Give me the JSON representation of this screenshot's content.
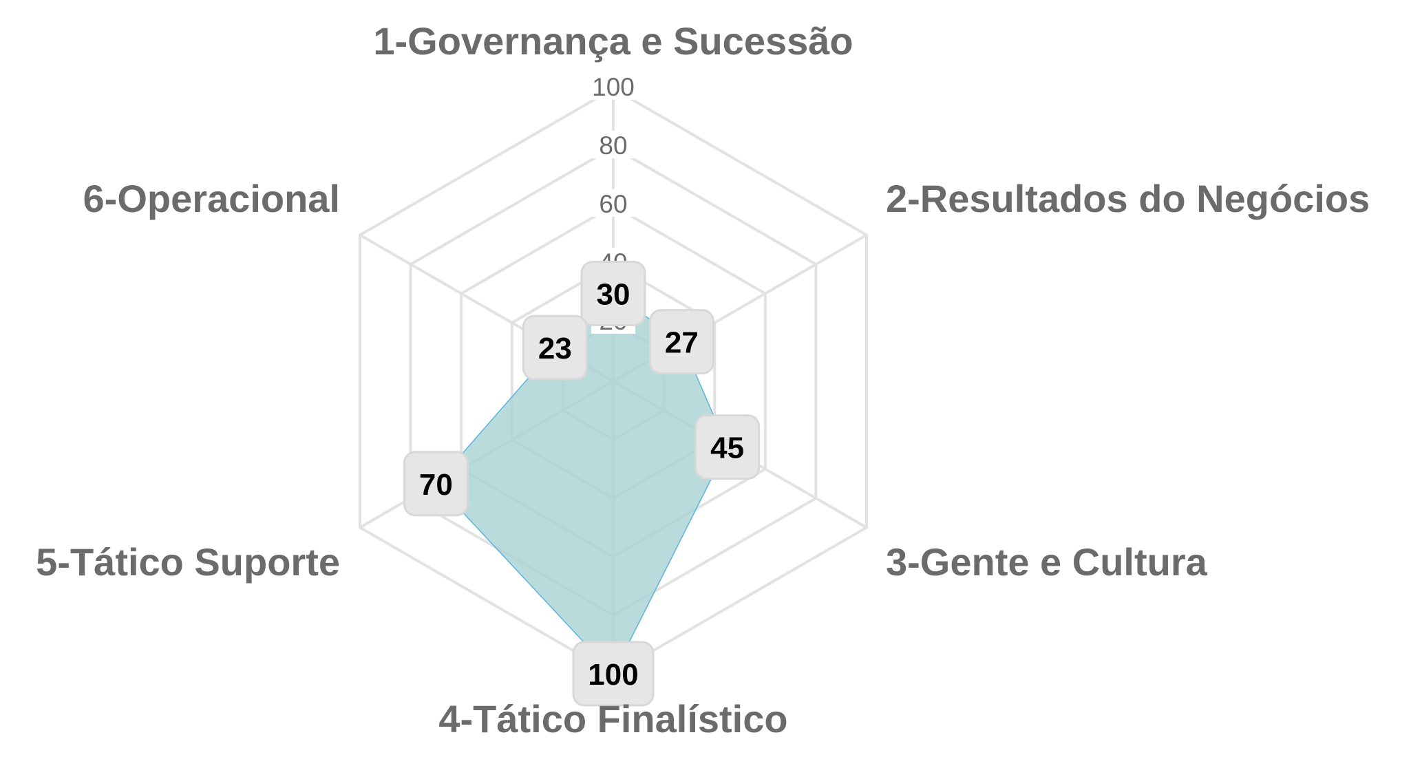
{
  "chart_data": {
    "type": "radar",
    "categories": [
      "1-Governança e Sucessão",
      "2-Resultados do Negócios",
      "3-Gente e Cultura",
      "4-Tático Finalístico",
      "5-Tático Suporte",
      "6-Operacional"
    ],
    "series": [
      {
        "values": [
          30,
          27,
          45,
          100,
          70,
          23
        ]
      }
    ],
    "value_labels": [
      "30",
      "27",
      "45",
      "100",
      "70",
      "23"
    ],
    "radial_ticks": [
      20,
      40,
      60,
      80,
      100
    ],
    "radial_tick_labels": [
      "20",
      "40",
      "60",
      "80",
      "100"
    ],
    "rlim": [
      0,
      100
    ],
    "grid": true,
    "legend": false,
    "colors": {
      "fill": "#a9d3d3",
      "stroke": "#5bb4e0",
      "grid": "#e2e2e2",
      "text": "#6b6b6b",
      "label_box": "#e6e6e6"
    }
  }
}
